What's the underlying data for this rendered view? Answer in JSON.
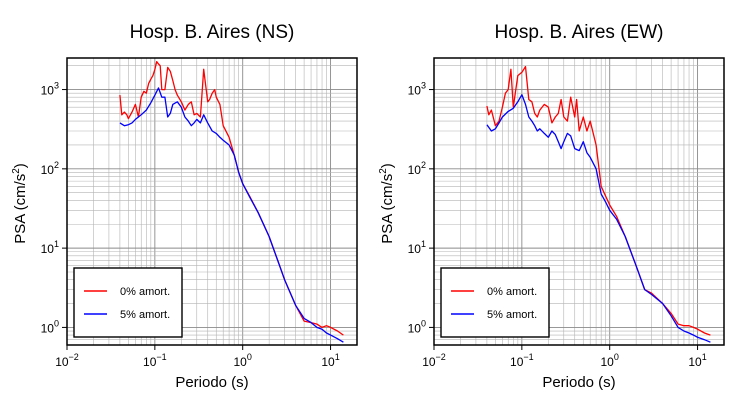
{
  "chart_data": [
    {
      "type": "line",
      "title": "Hosp. B. Aires (NS)",
      "xlabel": "Periodo (s)",
      "ylabel_main": "PSA (cm/s",
      "ylabel_sup": "2",
      "ylabel_close": ")",
      "x_scale": "log",
      "y_scale": "log",
      "xlim": [
        0.01,
        20
      ],
      "ylim": [
        0.6,
        2500
      ],
      "x_ticks": [
        {
          "base": "10",
          "exp": "−2"
        },
        {
          "base": "10",
          "exp": "−1"
        },
        {
          "base": "10",
          "exp": "0"
        },
        {
          "base": "10",
          "exp": "1"
        }
      ],
      "y_ticks": [
        {
          "base": "10",
          "exp": "0"
        },
        {
          "base": "10",
          "exp": "1"
        },
        {
          "base": "10",
          "exp": "2"
        },
        {
          "base": "10",
          "exp": "3"
        }
      ],
      "grid": true,
      "legend_position": "bottom-left",
      "series": [
        {
          "name": "0% amort.",
          "color": "#ff0000",
          "x": [
            0.04,
            0.042,
            0.045,
            0.048,
            0.05,
            0.055,
            0.06,
            0.065,
            0.07,
            0.075,
            0.08,
            0.085,
            0.09,
            0.095,
            0.1,
            0.105,
            0.11,
            0.115,
            0.12,
            0.13,
            0.14,
            0.15,
            0.16,
            0.17,
            0.18,
            0.2,
            0.22,
            0.24,
            0.26,
            0.28,
            0.3,
            0.33,
            0.36,
            0.4,
            0.42,
            0.45,
            0.48,
            0.5,
            0.55,
            0.6,
            0.7,
            0.8,
            0.9,
            1.0,
            1.2,
            1.5,
            2,
            2.5,
            3,
            4,
            5,
            6,
            7,
            8,
            9,
            10,
            12,
            14
          ],
          "y": [
            850,
            480,
            520,
            480,
            430,
            520,
            650,
            450,
            800,
            950,
            900,
            1200,
            1350,
            1500,
            1800,
            2250,
            2100,
            2000,
            1000,
            1000,
            1900,
            1700,
            1300,
            1000,
            850,
            700,
            550,
            650,
            700,
            480,
            500,
            450,
            1800,
            700,
            750,
            900,
            1000,
            800,
            650,
            350,
            250,
            150,
            90,
            65,
            45,
            28,
            14,
            7,
            4,
            1.9,
            1.2,
            1.15,
            1.1,
            1.0,
            1.05,
            1.0,
            0.9,
            0.8
          ]
        },
        {
          "name": "5% amort.",
          "color": "#0000ff",
          "x": [
            0.04,
            0.045,
            0.05,
            0.055,
            0.06,
            0.07,
            0.08,
            0.09,
            0.1,
            0.11,
            0.12,
            0.13,
            0.14,
            0.15,
            0.16,
            0.18,
            0.2,
            0.22,
            0.24,
            0.26,
            0.28,
            0.3,
            0.33,
            0.36,
            0.4,
            0.45,
            0.5,
            0.55,
            0.6,
            0.7,
            0.8,
            0.9,
            1.0,
            1.2,
            1.5,
            2,
            2.5,
            3,
            4,
            5,
            6,
            7,
            8,
            9,
            10,
            12,
            14
          ],
          "y": [
            380,
            350,
            360,
            380,
            420,
            480,
            550,
            680,
            850,
            1050,
            800,
            800,
            450,
            500,
            650,
            700,
            600,
            450,
            400,
            350,
            380,
            420,
            380,
            480,
            380,
            300,
            280,
            250,
            230,
            200,
            150,
            90,
            65,
            44,
            28,
            14,
            7,
            4,
            1.9,
            1.3,
            1.15,
            1.0,
            0.95,
            0.85,
            0.8,
            0.72,
            0.65
          ]
        }
      ]
    },
    {
      "type": "line",
      "title": "Hosp. B. Aires (EW)",
      "xlabel": "Periodo (s)",
      "ylabel_main": "PSA (cm/s",
      "ylabel_sup": "2",
      "ylabel_close": ")",
      "x_scale": "log",
      "y_scale": "log",
      "xlim": [
        0.01,
        20
      ],
      "ylim": [
        0.6,
        2500
      ],
      "x_ticks": [
        {
          "base": "10",
          "exp": "−2"
        },
        {
          "base": "10",
          "exp": "−1"
        },
        {
          "base": "10",
          "exp": "0"
        },
        {
          "base": "10",
          "exp": "1"
        }
      ],
      "y_ticks": [
        {
          "base": "10",
          "exp": "0"
        },
        {
          "base": "10",
          "exp": "1"
        },
        {
          "base": "10",
          "exp": "2"
        },
        {
          "base": "10",
          "exp": "3"
        }
      ],
      "grid": true,
      "legend_position": "bottom-left",
      "series": [
        {
          "name": "0% amort.",
          "color": "#ff0000",
          "x": [
            0.04,
            0.042,
            0.045,
            0.05,
            0.055,
            0.06,
            0.065,
            0.07,
            0.075,
            0.08,
            0.09,
            0.1,
            0.11,
            0.12,
            0.13,
            0.14,
            0.15,
            0.16,
            0.18,
            0.2,
            0.22,
            0.24,
            0.26,
            0.28,
            0.3,
            0.33,
            0.36,
            0.4,
            0.42,
            0.45,
            0.5,
            0.55,
            0.6,
            0.7,
            0.8,
            0.9,
            1.0,
            1.2,
            1.5,
            2,
            2.5,
            3,
            4,
            5,
            6,
            7,
            8,
            9,
            10,
            12,
            14
          ],
          "y": [
            620,
            480,
            550,
            350,
            400,
            600,
            900,
            1000,
            1800,
            600,
            1500,
            1650,
            1950,
            750,
            700,
            500,
            450,
            550,
            650,
            600,
            380,
            450,
            500,
            750,
            450,
            400,
            800,
            450,
            750,
            300,
            450,
            300,
            400,
            200,
            60,
            45,
            35,
            25,
            14,
            6,
            3,
            2.7,
            2,
            1.5,
            1.1,
            1.05,
            1.05,
            1.0,
            0.95,
            0.85,
            0.8
          ]
        },
        {
          "name": "5% amort.",
          "color": "#0000ff",
          "x": [
            0.04,
            0.045,
            0.05,
            0.055,
            0.06,
            0.07,
            0.08,
            0.09,
            0.1,
            0.11,
            0.12,
            0.13,
            0.14,
            0.15,
            0.16,
            0.18,
            0.2,
            0.22,
            0.24,
            0.26,
            0.28,
            0.3,
            0.33,
            0.36,
            0.4,
            0.45,
            0.5,
            0.55,
            0.6,
            0.7,
            0.8,
            0.9,
            1.0,
            1.2,
            1.5,
            2,
            2.5,
            3,
            4,
            5,
            6,
            7,
            8,
            9,
            10,
            12,
            14
          ],
          "y": [
            360,
            300,
            320,
            380,
            450,
            530,
            580,
            700,
            860,
            650,
            450,
            400,
            350,
            300,
            320,
            280,
            250,
            300,
            270,
            220,
            180,
            220,
            280,
            260,
            180,
            170,
            220,
            160,
            140,
            100,
            48,
            38,
            30,
            23,
            14,
            6,
            3,
            2.6,
            2,
            1.4,
            1.0,
            0.9,
            0.85,
            0.8,
            0.75,
            0.7,
            0.65
          ]
        }
      ]
    }
  ]
}
